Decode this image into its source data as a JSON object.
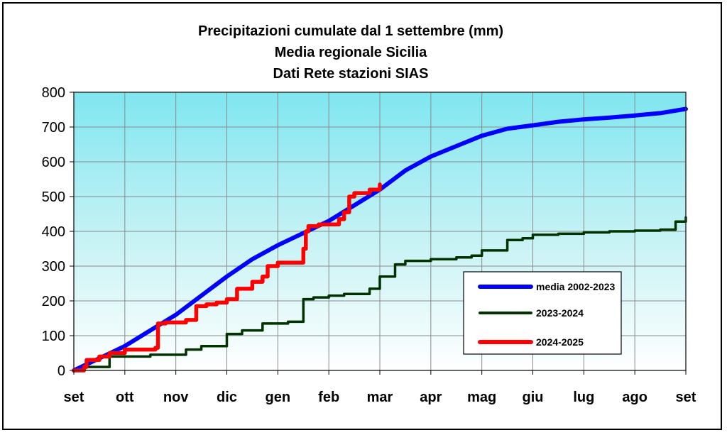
{
  "chart_data": {
    "type": "line",
    "title": [
      "Precipitazioni cumulate dal 1 settembre (mm)",
      "Media regionale Sicilia",
      "Dati Rete stazioni SIAS"
    ],
    "xlabel": "",
    "ylabel": "",
    "ylim": [
      0,
      800
    ],
    "yticks": [
      0,
      100,
      200,
      300,
      400,
      500,
      600,
      700,
      800
    ],
    "x_unit": "months since 1 settembre",
    "xlim": [
      0,
      12
    ],
    "month_labels": [
      "set",
      "ott",
      "nov",
      "dic",
      "gen",
      "feb",
      "mar",
      "apr",
      "mag",
      "giu",
      "lug",
      "ago",
      "set"
    ],
    "grid": true,
    "legend_position": "lower-right",
    "series": [
      {
        "name": "media 2002-2023",
        "color": "#0000ff",
        "x": [
          0,
          0.5,
          1.0,
          1.5,
          2.0,
          2.5,
          3.0,
          3.5,
          4.0,
          4.5,
          5.0,
          5.5,
          6.0,
          6.5,
          7.0,
          7.5,
          8.0,
          8.5,
          9.0,
          9.5,
          10.0,
          10.5,
          11.0,
          11.5,
          12.0
        ],
        "y": [
          0,
          35,
          70,
          115,
          160,
          215,
          270,
          320,
          360,
          395,
          430,
          475,
          520,
          575,
          615,
          645,
          675,
          695,
          705,
          715,
          722,
          727,
          733,
          740,
          752
        ]
      },
      {
        "name": "2023-2024",
        "color": "#003300",
        "x": [
          0,
          0.2,
          0.5,
          0.7,
          1.0,
          1.5,
          2.0,
          2.2,
          2.5,
          2.8,
          3.0,
          3.3,
          3.7,
          4.0,
          4.2,
          4.5,
          4.7,
          5.0,
          5.3,
          5.8,
          6.0,
          6.3,
          6.5,
          6.7,
          7.0,
          7.3,
          7.5,
          7.8,
          8.0,
          8.3,
          8.5,
          8.8,
          9.0,
          9.5,
          10.0,
          10.5,
          11.0,
          11.5,
          11.8,
          12.0
        ],
        "y": [
          0,
          10,
          10,
          40,
          40,
          45,
          45,
          60,
          70,
          70,
          105,
          115,
          135,
          135,
          140,
          205,
          210,
          215,
          220,
          235,
          270,
          305,
          315,
          315,
          320,
          320,
          325,
          330,
          345,
          345,
          375,
          380,
          390,
          393,
          397,
          400,
          402,
          405,
          428,
          440
        ]
      },
      {
        "name": "2024-2025",
        "color": "#ff0000",
        "x": [
          0,
          0.1,
          0.2,
          0.25,
          0.5,
          0.7,
          1.0,
          1.5,
          1.6,
          1.65,
          1.8,
          2.0,
          2.2,
          2.4,
          2.6,
          2.8,
          3.0,
          3.2,
          3.5,
          3.7,
          3.8,
          4.0,
          4.3,
          4.5,
          4.55,
          4.6,
          4.8,
          5.0,
          5.2,
          5.3,
          5.4,
          5.5,
          5.8,
          6.0
        ],
        "y": [
          0,
          0,
          10,
          30,
          40,
          50,
          60,
          60,
          65,
          135,
          138,
          138,
          145,
          185,
          190,
          195,
          205,
          235,
          255,
          270,
          300,
          310,
          310,
          350,
          400,
          415,
          420,
          420,
          435,
          455,
          500,
          510,
          520,
          535
        ]
      }
    ]
  }
}
